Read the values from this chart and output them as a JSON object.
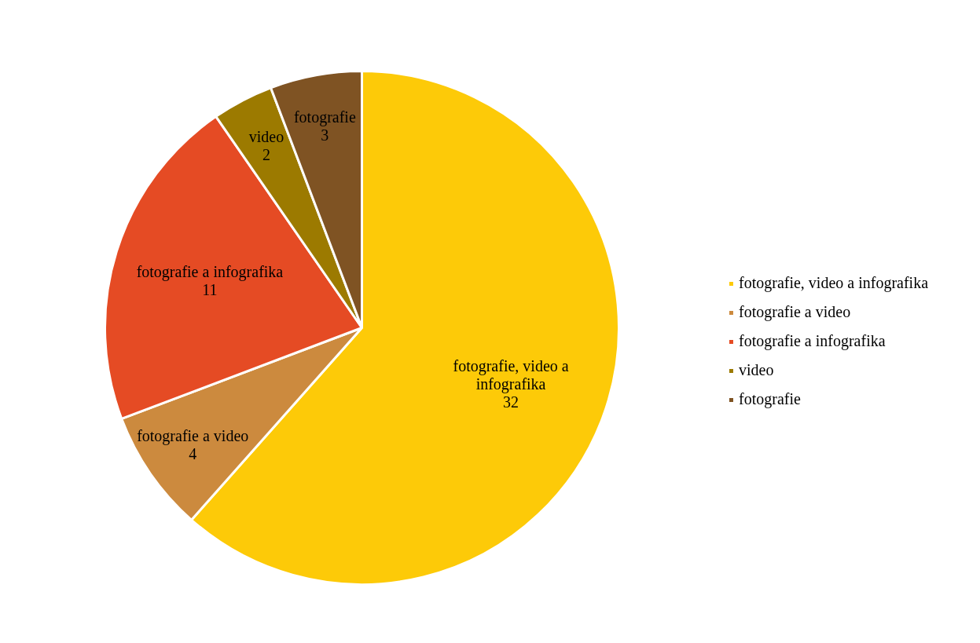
{
  "chart_data": {
    "type": "pie",
    "categories": [
      "fotografie, video a infografika",
      "fotografie a video",
      "fotografie a infografika",
      "video",
      "fotografie"
    ],
    "values": [
      32,
      4,
      11,
      2,
      3
    ],
    "colors": [
      "#fdca08",
      "#cc8a3e",
      "#e54b24",
      "#9c7a00",
      "#7f5323"
    ],
    "data_labels": true,
    "legend": "right"
  }
}
